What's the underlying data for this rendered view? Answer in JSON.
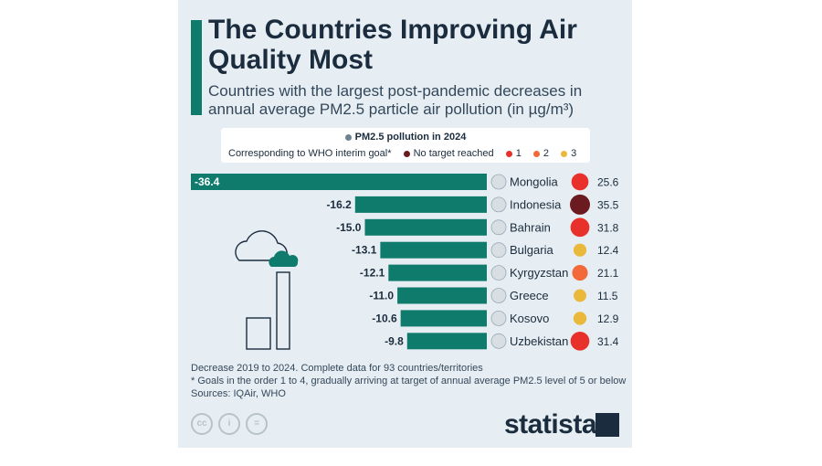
{
  "title": "The Countries Improving Air Quality Most",
  "subtitle": "Countries with the largest post-pandemic decreases in annual average PM2.5 particle air pollution (in µg/m³)",
  "legend": {
    "pm_label": "PM2.5 pollution in 2024",
    "who_label": "Corresponding to WHO interim goal*",
    "no_target": "No target reached",
    "goal1": "1",
    "goal2": "2",
    "goal3": "3"
  },
  "colors": {
    "accent": "#0f7b6c",
    "bar": "#0f7b6c",
    "no_target": "#6b1a1f",
    "goal1": "#e8312b",
    "goal2": "#f26a3a",
    "goal3": "#eab83a",
    "legend_pm_dot": "#6f8290"
  },
  "chart_data": {
    "type": "bar",
    "orientation": "horizontal",
    "title": "The Countries Improving Air Quality Most",
    "categories": [
      "Mongolia",
      "Indonesia",
      "Bahrain",
      "Bulgaria",
      "Kyrgyzstan",
      "Greece",
      "Kosovo",
      "Uzbekistan"
    ],
    "values": [
      -36.4,
      -16.2,
      -15.0,
      -13.1,
      -12.1,
      -11.0,
      -10.6,
      -9.8
    ],
    "value_labels": [
      "-36.4",
      "-16.2",
      "-15.0",
      "-13.1",
      "-12.1",
      "-11.0",
      "-10.6",
      "-9.8"
    ],
    "pm25_2024": [
      25.6,
      35.5,
      31.8,
      12.4,
      21.1,
      11.5,
      12.9,
      31.4
    ],
    "pm25_labels": [
      "25.6",
      "35.5",
      "31.8",
      "12.4",
      "21.1",
      "11.5",
      "12.9",
      "31.4"
    ],
    "who_goal": [
      "1",
      "none",
      "1",
      "3",
      "2",
      "3",
      "3",
      "1"
    ],
    "series": [
      {
        "name": "Decrease 2019 to 2024",
        "values": [
          -36.4,
          -16.2,
          -15.0,
          -13.1,
          -12.1,
          -11.0,
          -10.6,
          -9.8
        ]
      },
      {
        "name": "PM2.5 pollution in 2024",
        "values": [
          25.6,
          35.5,
          31.8,
          12.4,
          21.1,
          11.5,
          12.9,
          31.4
        ]
      }
    ],
    "xlim": [
      -36.4,
      0
    ]
  },
  "footnote": {
    "line1": "Decrease 2019 to 2024. Complete data for 93 countries/territories",
    "line2": "* Goals in the order 1 to 4, gradually arriving at target of annual average PM2.5 level of 5 or below",
    "line3": "Sources: IQAir, WHO"
  },
  "license_icons": [
    "cc",
    "i",
    "="
  ],
  "brand": "statista"
}
